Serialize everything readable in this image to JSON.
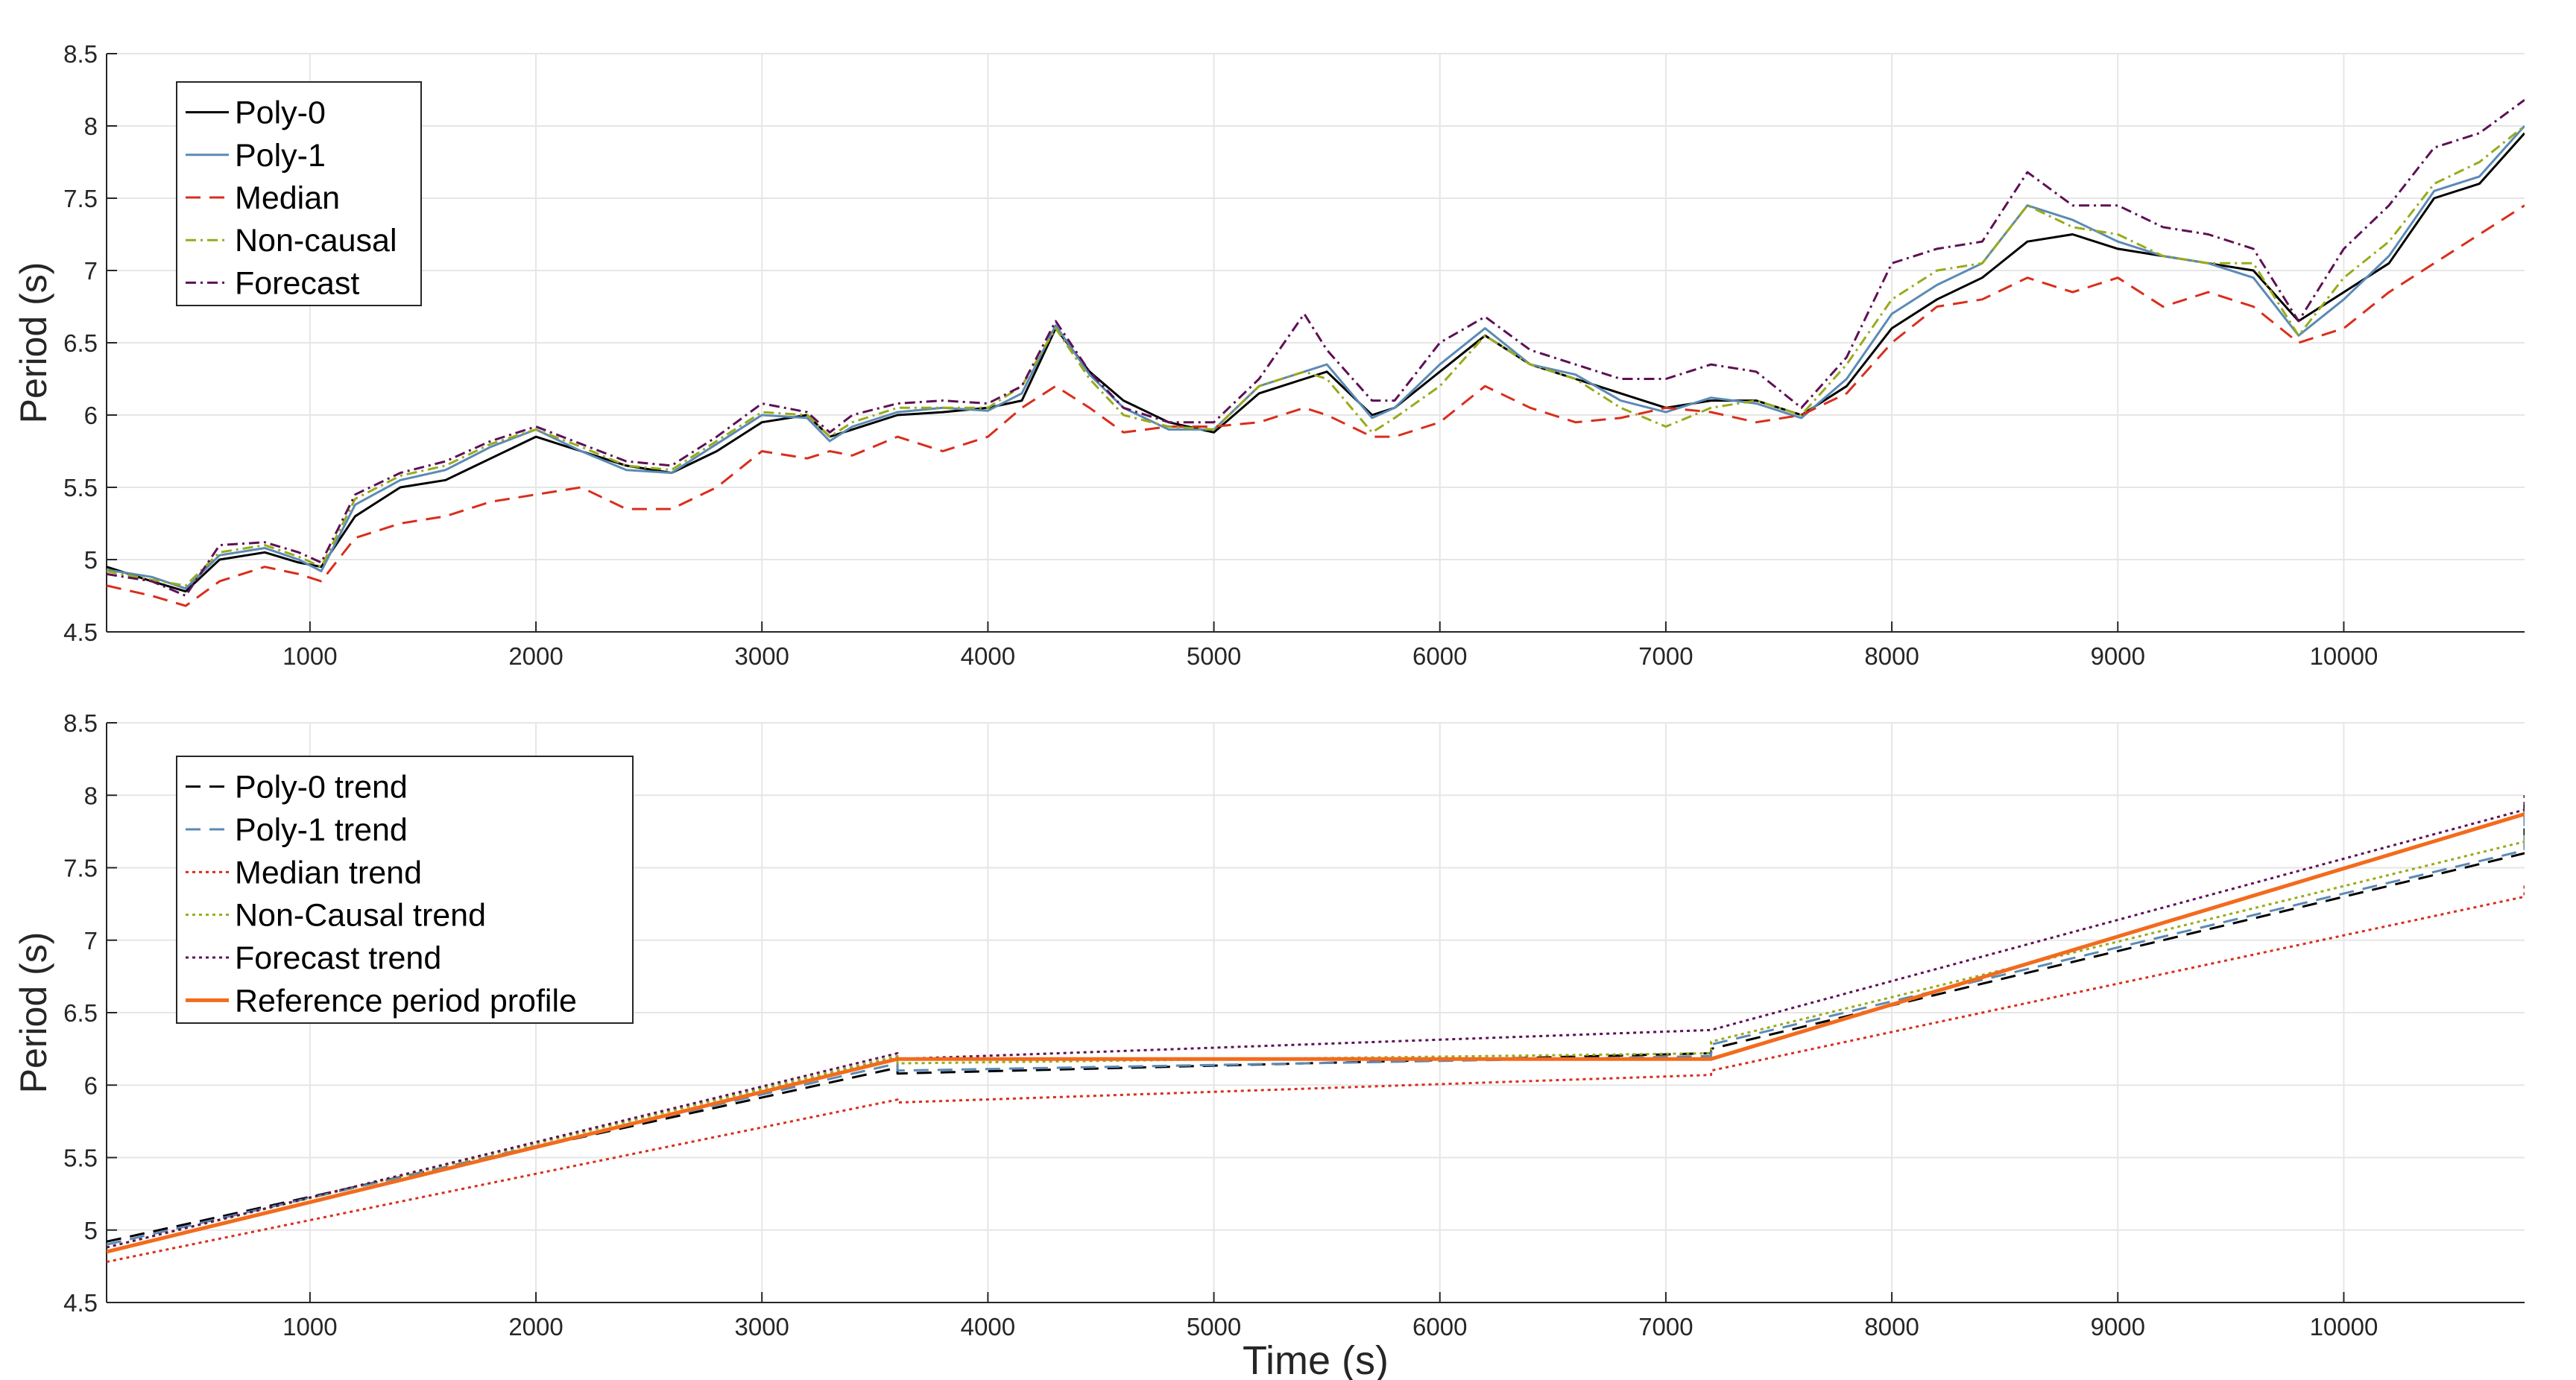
{
  "figure": {
    "xlabel_shared": "Time (s)"
  },
  "colors": {
    "poly0": "#000000",
    "poly1": "#5b8ab5",
    "median": "#d92e1c",
    "noncausal": "#98ab1a",
    "forecast": "#5e1055",
    "reference": "#f26b1d"
  },
  "chart_data": [
    {
      "id": "top",
      "type": "line",
      "title": "",
      "xlabel": "",
      "ylabel": "Period (s)",
      "xlim": [
        100,
        10800
      ],
      "ylim": [
        4.5,
        8.5
      ],
      "xticks": [
        1000,
        2000,
        3000,
        4000,
        5000,
        6000,
        7000,
        8000,
        9000,
        10000
      ],
      "yticks": [
        4.5,
        5,
        5.5,
        6,
        6.5,
        7,
        7.5,
        8,
        8.5
      ],
      "grid": true,
      "legend_position": "top-left",
      "series": [
        {
          "name": "Poly-0",
          "color_key": "poly0",
          "style": "solid",
          "x": [
            100,
            300,
            450,
            600,
            800,
            950,
            1050,
            1200,
            1400,
            1600,
            1800,
            2000,
            2200,
            2400,
            2600,
            2800,
            3000,
            3200,
            3300,
            3400,
            3600,
            3800,
            4000,
            4150,
            4300,
            4450,
            4600,
            4800,
            5000,
            5200,
            5400,
            5500,
            5700,
            5800,
            6000,
            6200,
            6400,
            6600,
            6800,
            7000,
            7200,
            7400,
            7600,
            7800,
            8000,
            8200,
            8400,
            8600,
            8800,
            9000,
            9200,
            9400,
            9600,
            9800,
            10000,
            10200,
            10400,
            10600,
            10800
          ],
          "y": [
            4.95,
            4.85,
            4.78,
            5.0,
            5.05,
            4.98,
            4.95,
            5.3,
            5.5,
            5.55,
            5.7,
            5.85,
            5.75,
            5.65,
            5.6,
            5.75,
            5.95,
            6.0,
            5.85,
            5.9,
            6.0,
            6.02,
            6.05,
            6.1,
            6.6,
            6.3,
            6.1,
            5.95,
            5.88,
            6.15,
            6.25,
            6.3,
            6.0,
            6.05,
            6.3,
            6.55,
            6.35,
            6.25,
            6.15,
            6.05,
            6.1,
            6.1,
            6.0,
            6.2,
            6.6,
            6.8,
            6.95,
            7.2,
            7.25,
            7.15,
            7.1,
            7.05,
            7.0,
            6.65,
            6.85,
            7.05,
            7.5,
            7.6,
            7.95
          ]
        },
        {
          "name": "Poly-1",
          "color_key": "poly1",
          "style": "solid",
          "x": [
            100,
            300,
            450,
            600,
            800,
            950,
            1050,
            1200,
            1400,
            1600,
            1800,
            2000,
            2200,
            2400,
            2600,
            2800,
            3000,
            3200,
            3300,
            3400,
            3600,
            3800,
            4000,
            4150,
            4300,
            4450,
            4600,
            4800,
            5000,
            5200,
            5400,
            5500,
            5700,
            5800,
            6000,
            6200,
            6400,
            6600,
            6800,
            7000,
            7200,
            7400,
            7600,
            7800,
            8000,
            8200,
            8400,
            8600,
            8800,
            9000,
            9200,
            9400,
            9600,
            9800,
            10000,
            10200,
            10400,
            10600,
            10800
          ],
          "y": [
            4.93,
            4.88,
            4.8,
            5.03,
            5.08,
            5.0,
            4.92,
            5.38,
            5.55,
            5.62,
            5.78,
            5.9,
            5.75,
            5.62,
            5.6,
            5.8,
            6.0,
            5.98,
            5.82,
            5.92,
            6.02,
            6.05,
            6.03,
            6.15,
            6.62,
            6.28,
            6.05,
            5.9,
            5.9,
            6.2,
            6.3,
            6.35,
            5.98,
            6.05,
            6.35,
            6.6,
            6.35,
            6.28,
            6.1,
            6.02,
            6.12,
            6.08,
            5.98,
            6.25,
            6.7,
            6.9,
            7.05,
            7.45,
            7.35,
            7.2,
            7.1,
            7.05,
            6.95,
            6.55,
            6.8,
            7.1,
            7.55,
            7.65,
            8.0
          ]
        },
        {
          "name": "Median",
          "color_key": "median",
          "style": "dashed",
          "x": [
            100,
            300,
            450,
            600,
            800,
            950,
            1050,
            1200,
            1400,
            1600,
            1800,
            2000,
            2200,
            2400,
            2600,
            2800,
            3000,
            3200,
            3300,
            3400,
            3600,
            3800,
            4000,
            4150,
            4300,
            4450,
            4600,
            4800,
            5000,
            5200,
            5400,
            5500,
            5700,
            5800,
            6000,
            6200,
            6400,
            6600,
            6800,
            7000,
            7200,
            7400,
            7600,
            7800,
            8000,
            8200,
            8400,
            8600,
            8800,
            9000,
            9200,
            9400,
            9600,
            9800,
            10000,
            10200,
            10400,
            10600,
            10800
          ],
          "y": [
            4.82,
            4.75,
            4.68,
            4.85,
            4.95,
            4.9,
            4.85,
            5.15,
            5.25,
            5.3,
            5.4,
            5.45,
            5.5,
            5.35,
            5.35,
            5.5,
            5.75,
            5.7,
            5.75,
            5.72,
            5.85,
            5.75,
            5.85,
            6.05,
            6.2,
            6.05,
            5.88,
            5.92,
            5.92,
            5.95,
            6.05,
            6.0,
            5.85,
            5.85,
            5.95,
            6.2,
            6.05,
            5.95,
            5.98,
            6.05,
            6.02,
            5.95,
            6.0,
            6.15,
            6.5,
            6.75,
            6.8,
            6.95,
            6.85,
            6.95,
            6.75,
            6.85,
            6.75,
            6.5,
            6.6,
            6.85,
            7.05,
            7.25,
            7.45
          ]
        },
        {
          "name": "Non-causal",
          "color_key": "noncausal",
          "style": "dashdot",
          "x": [
            100,
            300,
            450,
            600,
            800,
            950,
            1050,
            1200,
            1400,
            1600,
            1800,
            2000,
            2200,
            2400,
            2600,
            2800,
            3000,
            3200,
            3300,
            3400,
            3600,
            3800,
            4000,
            4150,
            4300,
            4450,
            4600,
            4800,
            5000,
            5200,
            5400,
            5500,
            5700,
            5800,
            6000,
            6200,
            6400,
            6600,
            6800,
            7000,
            7200,
            7400,
            7600,
            7800,
            8000,
            8200,
            8400,
            8600,
            8800,
            9000,
            9200,
            9400,
            9600,
            9800,
            10000,
            10200,
            10400,
            10600,
            10800
          ],
          "y": [
            4.92,
            4.86,
            4.82,
            5.05,
            5.1,
            5.02,
            4.95,
            5.42,
            5.58,
            5.65,
            5.8,
            5.9,
            5.78,
            5.65,
            5.62,
            5.82,
            6.02,
            6.0,
            5.85,
            5.95,
            6.05,
            6.05,
            6.05,
            6.2,
            6.6,
            6.25,
            6.0,
            5.92,
            5.9,
            6.2,
            6.3,
            6.25,
            5.88,
            5.98,
            6.2,
            6.55,
            6.35,
            6.25,
            6.05,
            5.92,
            6.05,
            6.1,
            6.0,
            6.35,
            6.8,
            7.0,
            7.05,
            7.45,
            7.3,
            7.25,
            7.1,
            7.05,
            7.05,
            6.55,
            6.95,
            7.2,
            7.6,
            7.75,
            8.0
          ]
        },
        {
          "name": "Forecast",
          "color_key": "forecast",
          "style": "dashdot",
          "x": [
            100,
            300,
            450,
            600,
            800,
            950,
            1050,
            1200,
            1400,
            1600,
            1800,
            2000,
            2200,
            2400,
            2600,
            2800,
            3000,
            3200,
            3300,
            3400,
            3600,
            3800,
            4000,
            4150,
            4300,
            4450,
            4600,
            4800,
            5000,
            5200,
            5400,
            5500,
            5700,
            5800,
            6000,
            6200,
            6400,
            6600,
            6800,
            7000,
            7200,
            7400,
            7600,
            7800,
            8000,
            8200,
            8400,
            8600,
            8800,
            9000,
            9200,
            9400,
            9600,
            9800,
            10000,
            10200,
            10400,
            10600,
            10800
          ],
          "y": [
            4.9,
            4.85,
            4.75,
            5.1,
            5.12,
            5.05,
            4.98,
            5.45,
            5.6,
            5.68,
            5.82,
            5.92,
            5.8,
            5.68,
            5.65,
            5.85,
            6.08,
            6.02,
            5.88,
            6.0,
            6.08,
            6.1,
            6.08,
            6.2,
            6.65,
            6.3,
            6.05,
            5.95,
            5.95,
            6.25,
            6.7,
            6.45,
            6.1,
            6.1,
            6.5,
            6.68,
            6.45,
            6.35,
            6.25,
            6.25,
            6.35,
            6.3,
            6.05,
            6.4,
            7.05,
            7.15,
            7.2,
            7.68,
            7.45,
            7.45,
            7.3,
            7.25,
            7.15,
            6.65,
            7.15,
            7.45,
            7.85,
            7.95,
            8.18
          ]
        }
      ]
    },
    {
      "id": "bottom",
      "type": "line",
      "title": "",
      "xlabel": "Time (s)",
      "ylabel": "Period (s)",
      "xlim": [
        100,
        10800
      ],
      "ylim": [
        4.5,
        8.5
      ],
      "xticks": [
        1000,
        2000,
        3000,
        4000,
        5000,
        6000,
        7000,
        8000,
        9000,
        10000
      ],
      "yticks": [
        4.5,
        5,
        5.5,
        6,
        6.5,
        7,
        7.5,
        8,
        8.5
      ],
      "grid": true,
      "legend_position": "top-left",
      "series": [
        {
          "name": "Poly-0 trend",
          "color_key": "poly0",
          "style": "dashed",
          "x": [
            100,
            3600,
            3600,
            7200,
            7200,
            10800,
            10800
          ],
          "y": [
            4.92,
            6.12,
            6.08,
            6.22,
            6.25,
            7.6,
            8.0
          ]
        },
        {
          "name": "Poly-1 trend",
          "color_key": "poly1",
          "style": "dashed",
          "x": [
            100,
            3600,
            3600,
            7200,
            7200,
            10800,
            10800
          ],
          "y": [
            4.9,
            6.15,
            6.1,
            6.2,
            6.28,
            7.62,
            7.95
          ]
        },
        {
          "name": "Median trend",
          "color_key": "median",
          "style": "dotted",
          "x": [
            100,
            3600,
            3600,
            7200,
            7200,
            10800,
            10800
          ],
          "y": [
            4.78,
            5.9,
            5.88,
            6.07,
            6.1,
            7.3,
            7.38
          ]
        },
        {
          "name": "Non-Causal trend",
          "color_key": "noncausal",
          "style": "dotted",
          "x": [
            100,
            3600,
            3600,
            7200,
            7200,
            10800,
            10800
          ],
          "y": [
            4.88,
            6.2,
            6.15,
            6.22,
            6.3,
            7.68,
            7.72
          ]
        },
        {
          "name": "Forecast trend",
          "color_key": "forecast",
          "style": "dotted",
          "x": [
            100,
            3600,
            3600,
            7200,
            7200,
            10800,
            10800
          ],
          "y": [
            4.88,
            6.22,
            6.18,
            6.38,
            6.38,
            7.9,
            8.0
          ]
        },
        {
          "name": "Reference period profile",
          "color_key": "reference",
          "style": "solid",
          "x": [
            100,
            3600,
            7200,
            10800
          ],
          "y": [
            4.85,
            6.18,
            6.18,
            7.87
          ]
        }
      ]
    }
  ]
}
